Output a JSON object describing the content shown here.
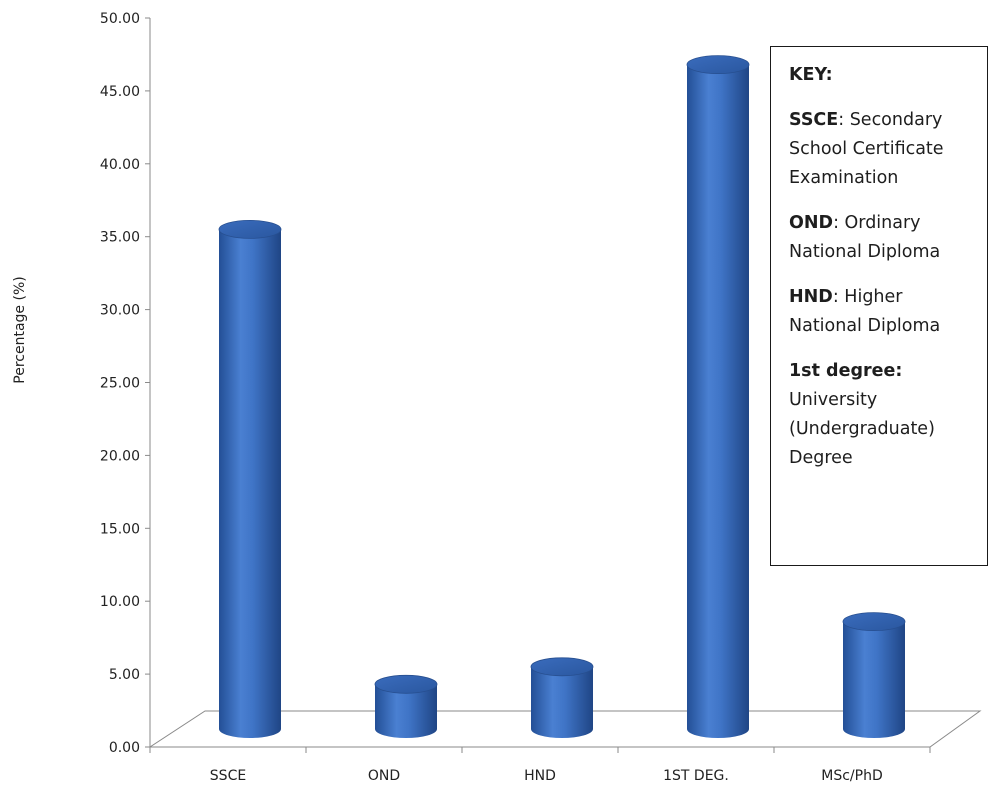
{
  "chart_data": {
    "type": "bar",
    "title": "",
    "xlabel": "",
    "ylabel": "Percentage (%)",
    "categories": [
      "SSCE",
      "OND",
      "HND",
      "1ST DEG.",
      "MSc/PhD"
    ],
    "values": [
      35.5,
      4.3,
      5.5,
      46.8,
      8.6
    ],
    "ylim": [
      0,
      50
    ],
    "yticks": [
      "0.00",
      "5.00",
      "10.00",
      "15.00",
      "20.00",
      "25.00",
      "30.00",
      "35.00",
      "40.00",
      "45.00",
      "50.00"
    ],
    "style": "3d-cylinder",
    "bar_color": "#3a6fc0",
    "grid": false,
    "legend_placement": "right"
  },
  "key": {
    "title": "KEY:",
    "entries": [
      {
        "abbr": "SSCE",
        "sep": ": ",
        "text": "Secondary School Certificate Examination"
      },
      {
        "abbr": "OND",
        "sep": ": ",
        "text": "Ordinary National Diploma"
      },
      {
        "abbr": "HND",
        "sep": ": ",
        "text": "Higher National Diploma"
      },
      {
        "abbr": "1st degree:",
        "sep": " ",
        "text": "University (Undergraduate) Degree"
      }
    ]
  }
}
